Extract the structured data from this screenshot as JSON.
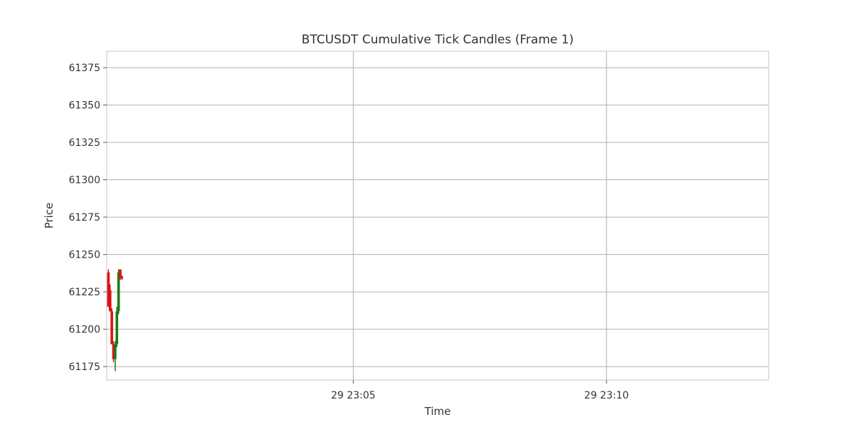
{
  "chart_data": {
    "type": "candlestick",
    "title": "BTCUSDT Cumulative Tick Candles (Frame 1)",
    "xlabel": "Time",
    "ylabel": "Price",
    "xlim": [
      "23:00:08",
      "23:13:12"
    ],
    "ylim": [
      61166,
      61386
    ],
    "x_ticks": [
      {
        "time": "23:05:00",
        "label": "29 23:05"
      },
      {
        "time": "23:10:00",
        "label": "29 23:10"
      }
    ],
    "y_ticks": [
      61175,
      61200,
      61225,
      61250,
      61275,
      61300,
      61325,
      61350,
      61375
    ],
    "grid": true,
    "colors": {
      "up": "#1a7a1a",
      "down": "#dd1111",
      "grid": "#b0b0b0",
      "frame": "#cfcfcf"
    },
    "candles": [
      {
        "time": "23:00:10",
        "open": 61238,
        "high": 61240,
        "low": 61215,
        "close": 61215
      },
      {
        "time": "23:00:12",
        "open": 61226,
        "high": 61230,
        "low": 61212,
        "close": 61212
      },
      {
        "time": "23:00:14",
        "open": 61212,
        "high": 61214,
        "low": 61190,
        "close": 61190
      },
      {
        "time": "23:00:16",
        "open": 61190,
        "high": 61192,
        "low": 61178,
        "close": 61180
      },
      {
        "time": "23:00:18",
        "open": 61180,
        "high": 61192,
        "low": 61172,
        "close": 61190
      },
      {
        "time": "23:00:20",
        "open": 61190,
        "high": 61215,
        "low": 61188,
        "close": 61212
      },
      {
        "time": "23:00:22",
        "open": 61212,
        "high": 61240,
        "low": 61210,
        "close": 61238
      },
      {
        "time": "23:00:24",
        "open": 61240,
        "high": 61240,
        "low": 61233,
        "close": 61235
      },
      {
        "time": "23:00:26",
        "open": 61235,
        "high": 61236,
        "low": 61233,
        "close": 61234
      }
    ]
  }
}
